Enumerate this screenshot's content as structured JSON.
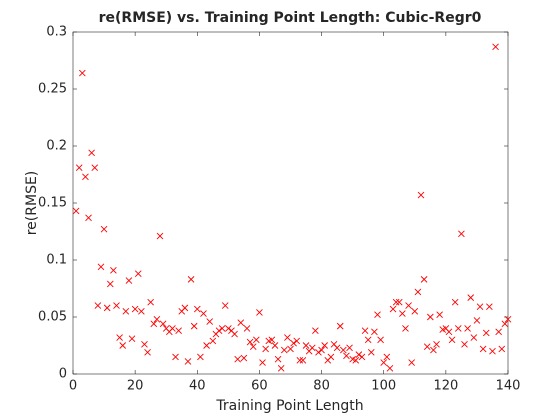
{
  "chart_data": {
    "type": "scatter",
    "title": "re(RMSE) vs. Training Point Length: Cubic-Regr0",
    "x_label": "Training Point Length",
    "y_label": "re(RMSE)",
    "marker_color": "#ff0000",
    "xlim": [
      0,
      140
    ],
    "xticks": [
      0,
      20,
      40,
      60,
      80,
      100,
      120,
      140
    ],
    "ylim": [
      0,
      0.3
    ],
    "yticks": [
      0,
      0.05,
      0.1,
      0.15,
      0.2,
      0.25,
      0.3
    ],
    "x": [
      1,
      2,
      3,
      4,
      5,
      6,
      7,
      8,
      9,
      10,
      11,
      12,
      13,
      14,
      15,
      16,
      17,
      18,
      19,
      20,
      21,
      22,
      23,
      24,
      25,
      26,
      27,
      28,
      29,
      30,
      31,
      32,
      33,
      34,
      35,
      36,
      37,
      38,
      39,
      40,
      41,
      42,
      43,
      44,
      45,
      46,
      47,
      48,
      49,
      50,
      51,
      52,
      53,
      54,
      55,
      56,
      57,
      58,
      59,
      60,
      61,
      62,
      63,
      64,
      65,
      66,
      67,
      68,
      69,
      70,
      71,
      72,
      73,
      74,
      75,
      76,
      77,
      78,
      79,
      80,
      81,
      82,
      83,
      84,
      85,
      86,
      87,
      88,
      89,
      90,
      91,
      92,
      93,
      94,
      95,
      96,
      97,
      98,
      99,
      100,
      101,
      102,
      103,
      104,
      105,
      106,
      107,
      108,
      109,
      110,
      111,
      112,
      113,
      114,
      115,
      116,
      117,
      118,
      119,
      120,
      121,
      122,
      123,
      124,
      125,
      126,
      127,
      128,
      129,
      130,
      131,
      132,
      133,
      134,
      135,
      136,
      137,
      138,
      139,
      140
    ],
    "y": [
      0.143,
      0.181,
      0.264,
      0.173,
      0.137,
      0.194,
      0.181,
      0.06,
      0.094,
      0.127,
      0.058,
      0.079,
      0.091,
      0.06,
      0.032,
      0.025,
      0.055,
      0.082,
      0.031,
      0.057,
      0.088,
      0.055,
      0.026,
      0.019,
      0.063,
      0.044,
      0.048,
      0.121,
      0.044,
      0.04,
      0.037,
      0.04,
      0.015,
      0.038,
      0.055,
      0.058,
      0.011,
      0.083,
      0.042,
      0.057,
      0.015,
      0.053,
      0.025,
      0.046,
      0.029,
      0.035,
      0.038,
      0.04,
      0.06,
      0.04,
      0.038,
      0.035,
      0.013,
      0.045,
      0.014,
      0.04,
      0.028,
      0.024,
      0.03,
      0.054,
      0.01,
      0.022,
      0.029,
      0.03,
      0.025,
      0.013,
      0.005,
      0.021,
      0.032,
      0.022,
      0.027,
      0.029,
      0.012,
      0.012,
      0.025,
      0.02,
      0.023,
      0.038,
      0.019,
      0.021,
      0.025,
      0.012,
      0.015,
      0.026,
      0.023,
      0.042,
      0.021,
      0.016,
      0.023,
      0.013,
      0.012,
      0.017,
      0.015,
      0.038,
      0.03,
      0.019,
      0.037,
      0.052,
      0.03,
      0.01,
      0.015,
      0.005,
      0.057,
      0.063,
      0.063,
      0.053,
      0.04,
      0.06,
      0.01,
      0.055,
      0.072,
      0.157,
      0.083,
      0.024,
      0.05,
      0.021,
      0.026,
      0.052,
      0.039,
      0.04,
      0.037,
      0.03,
      0.063,
      0.04,
      0.123,
      0.026,
      0.04,
      0.067,
      0.032,
      0.047,
      0.059,
      0.022,
      0.036,
      0.059,
      0.02,
      0.287,
      0.037,
      0.022,
      0.044,
      0.048
    ]
  }
}
